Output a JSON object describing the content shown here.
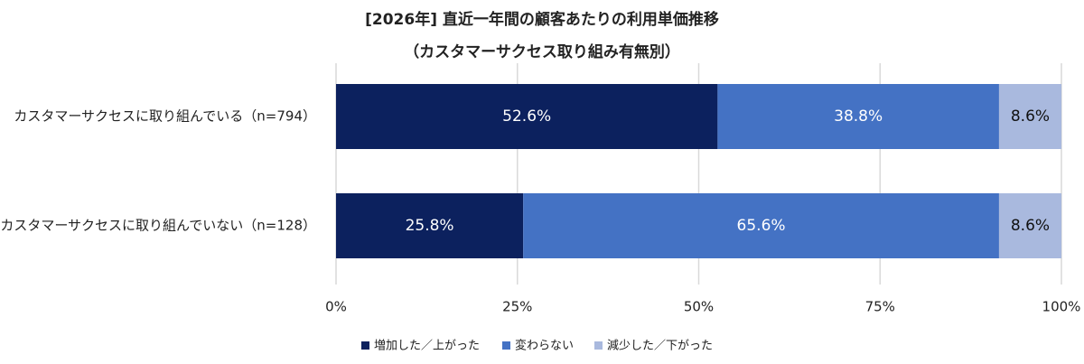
{
  "chart_data": {
    "type": "stacked-bar-horizontal",
    "title": "[2026年] 直近一年間の顧客あたりの利用単価推移",
    "subtitle": "（カスタマーサクセス取り組み有無別）",
    "categories": [
      "カスタマーサクセスに取り組んでいる（n=794）",
      "カスタマーサクセスに取り組んでいない（n=128）"
    ],
    "series": [
      {
        "name": "増加した／上がった",
        "color": "#0c215e",
        "values": [
          52.6,
          25.8
        ],
        "value_labels": [
          "52.6%",
          "25.8%"
        ]
      },
      {
        "name": "変わらない",
        "color": "#4472c4",
        "values": [
          38.8,
          65.6
        ],
        "value_labels": [
          "38.8%",
          "65.6%"
        ]
      },
      {
        "name": "減少した／下がった",
        "color": "#a9b9de",
        "values": [
          8.6,
          8.6
        ],
        "value_labels": [
          "8.6%",
          "8.6%"
        ]
      }
    ],
    "xlim": [
      0,
      100
    ],
    "xticks": [
      {
        "value": 0,
        "label": "0%"
      },
      {
        "value": 25,
        "label": "25%"
      },
      {
        "value": 50,
        "label": "50%"
      },
      {
        "value": 75,
        "label": "75%"
      },
      {
        "value": 100,
        "label": "100%"
      }
    ],
    "grid": true,
    "legend": "bottom"
  }
}
